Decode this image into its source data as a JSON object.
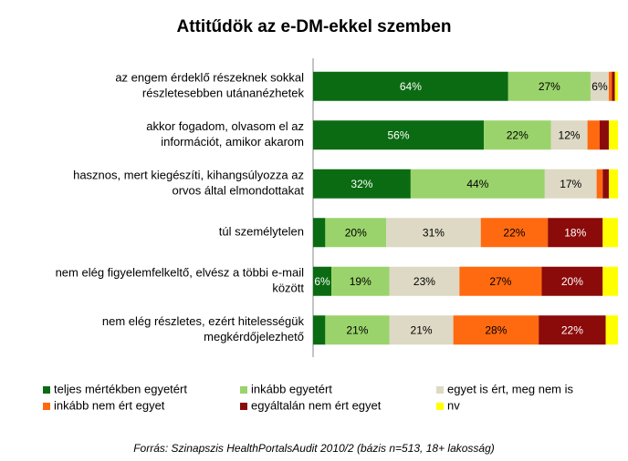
{
  "chart_data": {
    "type": "stacked_bar_horizontal",
    "title": "Attitűdök az e-DM-ekkel szemben",
    "categories": [
      [
        "az engem érdeklő részeknek sokkal",
        "részletesebben utánanézhetek"
      ],
      [
        "akkor fogadom, olvasom el az",
        "információt, amikor akarom"
      ],
      [
        "hasznos, mert kiegészíti, kihangsúlyozza az",
        "orvos által elmondottakat"
      ],
      [
        "túl személytelen"
      ],
      [
        "nem elég figyelemfelkeltő, elvész a többi e-mail",
        "között"
      ],
      [
        "nem elég részletes, ezért hitelességük",
        "megkérdőjelezhető"
      ]
    ],
    "xlim": [
      0,
      100
    ],
    "series": [
      {
        "name": "teljes mértékben egyetért",
        "color": "#0b6b12",
        "values": [
          64,
          56,
          32,
          4,
          6,
          4
        ],
        "value_labels": [
          "64%",
          "56%",
          "32%",
          null,
          "6%",
          null
        ]
      },
      {
        "name": "inkább egyetért",
        "color": "#9ad36b",
        "values": [
          27,
          22,
          44,
          20,
          19,
          21
        ],
        "value_labels": [
          "27%",
          "22%",
          "44%",
          "20%",
          "19%",
          "21%"
        ]
      },
      {
        "name": "egyet is ért, meg nem is",
        "color": "#ddd9c4",
        "values": [
          6,
          12,
          17,
          31,
          23,
          21
        ],
        "value_labels": [
          "6%",
          "12%",
          "17%",
          "31%",
          "23%",
          "21%"
        ]
      },
      {
        "name": "inkább nem ért egyet",
        "color": "#ff6a10",
        "values": [
          1,
          4,
          2,
          22,
          27,
          28
        ],
        "value_labels": [
          null,
          null,
          null,
          "22%",
          "27%",
          "28%"
        ]
      },
      {
        "name": "egyáltalán nem ért egyet",
        "color": "#8b0a0a",
        "values": [
          1,
          3,
          2,
          18,
          20,
          22
        ],
        "value_labels": [
          null,
          null,
          null,
          "18%",
          "20%",
          "22%"
        ]
      },
      {
        "name": "nv",
        "color": "#ffff00",
        "values": [
          1,
          3,
          3,
          5,
          5,
          4
        ],
        "value_labels": [
          null,
          null,
          null,
          null,
          null,
          null
        ]
      }
    ],
    "source": "Forrás: Szinapszis HealthPortalsAudit 2010/2 (bázis n=513, 18+ lakosság)"
  }
}
